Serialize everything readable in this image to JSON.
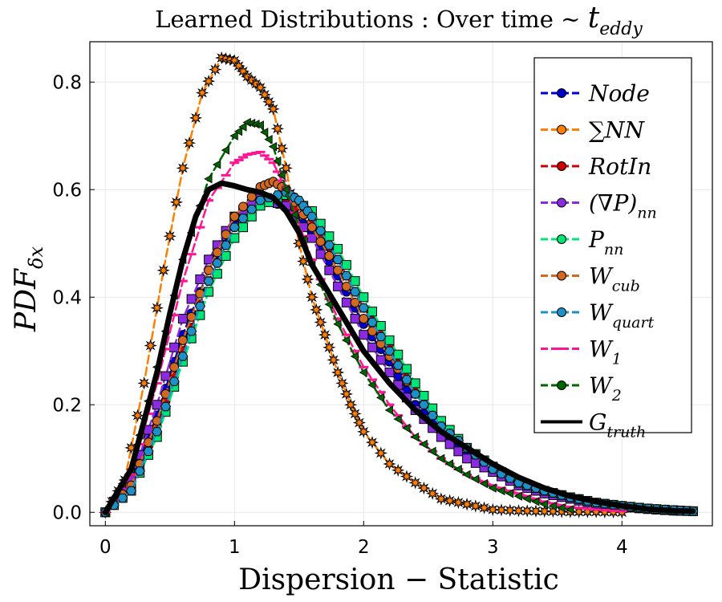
{
  "chart_data": {
    "type": "line",
    "title": "Learned Distributions :  Over time ~ t_eddy",
    "title_main": "Learned Distributions :  Over time ~ ",
    "title_var": "t",
    "title_sub": "eddy",
    "xlabel": "Dispersion − Statistic",
    "ylabel": "PDF",
    "ylabel_sub": "δx",
    "xlim": [
      -0.12,
      4.7
    ],
    "ylim": [
      -0.025,
      0.875
    ],
    "xticks": [
      "0",
      "1",
      "2",
      "3",
      "4"
    ],
    "xtick_values": [
      0,
      1,
      2,
      3,
      4
    ],
    "yticks": [
      "0.0",
      "0.2",
      "0.4",
      "0.6",
      "0.8"
    ],
    "ytick_values": [
      0,
      0.2,
      0.4,
      0.6,
      0.8
    ],
    "legend_position": "top-right",
    "series": [
      {
        "name": "Node",
        "label_main": "Node",
        "label_sub": "",
        "color": "#0000cc",
        "marker": "circle",
        "x": [
          0,
          0.2,
          0.4,
          0.6,
          0.8,
          1.0,
          1.2,
          1.4,
          1.6,
          1.8,
          2.0,
          2.2,
          2.4,
          2.6,
          2.8,
          3.0,
          3.2,
          3.4,
          3.6,
          3.8,
          4.0,
          4.2,
          4.4,
          4.55
        ],
        "y": [
          0.0,
          0.06,
          0.18,
          0.33,
          0.45,
          0.54,
          0.58,
          0.57,
          0.52,
          0.44,
          0.35,
          0.28,
          0.2,
          0.15,
          0.11,
          0.08,
          0.05,
          0.035,
          0.025,
          0.015,
          0.01,
          0.006,
          0.003,
          0.002
        ]
      },
      {
        "name": "∑NN",
        "label_main": "∑NN",
        "label_sub": "",
        "color": "#ff8000",
        "marker": "star",
        "x": [
          0,
          0.15,
          0.3,
          0.45,
          0.6,
          0.75,
          0.9,
          1.0,
          1.1,
          1.2,
          1.3,
          1.4,
          1.5,
          1.6,
          1.7,
          1.8,
          1.9,
          2.0,
          2.2,
          2.4,
          2.6,
          2.8,
          3.0,
          3.2,
          3.4,
          3.6,
          3.8,
          4.0
        ],
        "y": [
          0.0,
          0.06,
          0.24,
          0.45,
          0.64,
          0.78,
          0.845,
          0.84,
          0.81,
          0.79,
          0.75,
          0.64,
          0.5,
          0.4,
          0.33,
          0.26,
          0.2,
          0.15,
          0.09,
          0.055,
          0.025,
          0.015,
          0.005,
          0.003,
          0.002,
          0.001,
          0.001,
          0.0
        ]
      },
      {
        "name": "RotIn",
        "label_main": "RotIn",
        "label_sub": "",
        "color": "#cc0000",
        "marker": "circle",
        "x": [
          0,
          0.2,
          0.4,
          0.6,
          0.8,
          1.0,
          1.2,
          1.4,
          1.6,
          1.8,
          2.0,
          2.2,
          2.4,
          2.6,
          2.8,
          3.0,
          3.2,
          3.4,
          3.6,
          3.8,
          4.0,
          4.2,
          4.4,
          4.55
        ],
        "y": [
          0.0,
          0.05,
          0.16,
          0.3,
          0.43,
          0.53,
          0.58,
          0.58,
          0.54,
          0.47,
          0.38,
          0.31,
          0.23,
          0.16,
          0.12,
          0.085,
          0.055,
          0.04,
          0.028,
          0.018,
          0.012,
          0.007,
          0.004,
          0.002
        ]
      },
      {
        "name": "(∇P)_nn",
        "label_main": "(∇P)",
        "label_sub": "nn",
        "color": "#8a2be2",
        "marker": "square",
        "x": [
          0,
          0.2,
          0.4,
          0.6,
          0.8,
          1.0,
          1.2,
          1.4,
          1.6,
          1.8,
          2.0,
          2.2,
          2.4,
          2.6,
          2.8,
          3.0,
          3.2,
          3.4,
          3.6,
          3.8,
          4.0,
          4.2,
          4.4,
          4.55
        ],
        "y": [
          0.0,
          0.06,
          0.2,
          0.36,
          0.47,
          0.55,
          0.585,
          0.57,
          0.51,
          0.42,
          0.33,
          0.26,
          0.19,
          0.14,
          0.1,
          0.075,
          0.05,
          0.035,
          0.025,
          0.015,
          0.01,
          0.006,
          0.003,
          0.002
        ]
      },
      {
        "name": "P_nn",
        "label_main": "P",
        "label_sub": "nn",
        "color": "#00e676",
        "marker": "square",
        "x": [
          0,
          0.2,
          0.4,
          0.6,
          0.8,
          1.0,
          1.2,
          1.4,
          1.6,
          1.8,
          2.0,
          2.2,
          2.4,
          2.6,
          2.8,
          3.0,
          3.2,
          3.4,
          3.6,
          3.8,
          4.0,
          4.2,
          4.4,
          4.55
        ],
        "y": [
          0.0,
          0.04,
          0.14,
          0.28,
          0.41,
          0.51,
          0.57,
          0.59,
          0.56,
          0.49,
          0.4,
          0.32,
          0.24,
          0.17,
          0.12,
          0.085,
          0.055,
          0.04,
          0.028,
          0.018,
          0.012,
          0.007,
          0.004,
          0.002
        ]
      },
      {
        "name": "W_cub",
        "label_main": "W",
        "label_sub": "cub",
        "color": "#d2691e",
        "marker": "circle",
        "x": [
          0,
          0.2,
          0.4,
          0.6,
          0.8,
          1.0,
          1.2,
          1.3,
          1.4,
          1.6,
          1.8,
          2.0,
          2.2,
          2.4,
          2.6,
          2.8,
          3.0,
          3.2,
          3.4,
          3.6,
          3.8,
          4.0,
          4.2,
          4.4,
          4.55
        ],
        "y": [
          0.0,
          0.05,
          0.17,
          0.32,
          0.45,
          0.55,
          0.605,
          0.615,
          0.6,
          0.53,
          0.45,
          0.36,
          0.29,
          0.22,
          0.16,
          0.12,
          0.085,
          0.055,
          0.04,
          0.028,
          0.018,
          0.012,
          0.007,
          0.004,
          0.002
        ]
      },
      {
        "name": "W_quart",
        "label_main": "W",
        "label_sub": "quart",
        "color": "#1e90c8",
        "marker": "hexagon",
        "x": [
          0,
          0.2,
          0.4,
          0.6,
          0.8,
          1.0,
          1.2,
          1.4,
          1.5,
          1.6,
          1.8,
          2.0,
          2.2,
          2.4,
          2.6,
          2.8,
          3.0,
          3.2,
          3.4,
          3.6,
          3.8,
          4.0,
          4.2,
          4.4,
          4.55
        ],
        "y": [
          0.0,
          0.04,
          0.15,
          0.29,
          0.43,
          0.53,
          0.58,
          0.595,
          0.58,
          0.55,
          0.47,
          0.38,
          0.3,
          0.22,
          0.16,
          0.12,
          0.08,
          0.055,
          0.04,
          0.028,
          0.018,
          0.012,
          0.007,
          0.004,
          0.002
        ]
      },
      {
        "name": "W_1",
        "label_main": "W",
        "label_sub": "1",
        "color": "#ff1493",
        "marker": "dash",
        "x": [
          0,
          0.2,
          0.4,
          0.6,
          0.8,
          1.0,
          1.1,
          1.2,
          1.3,
          1.4,
          1.6,
          1.8,
          2.0,
          2.2,
          2.4,
          2.6,
          2.8,
          3.0,
          3.2,
          3.4,
          3.6,
          3.8,
          4.0
        ],
        "y": [
          0.0,
          0.07,
          0.24,
          0.43,
          0.58,
          0.65,
          0.665,
          0.67,
          0.65,
          0.6,
          0.47,
          0.36,
          0.27,
          0.2,
          0.14,
          0.1,
          0.07,
          0.05,
          0.035,
          0.02,
          0.01,
          0.005,
          0.002
        ]
      },
      {
        "name": "W_2",
        "label_main": "W",
        "label_sub": "2",
        "color": "#006400",
        "marker": "triangle",
        "x": [
          0,
          0.2,
          0.4,
          0.6,
          0.8,
          1.0,
          1.1,
          1.2,
          1.3,
          1.4,
          1.6,
          1.8,
          2.0,
          2.2,
          2.4,
          2.6,
          2.8,
          3.0,
          3.2,
          3.4,
          3.6
        ],
        "y": [
          0.0,
          0.08,
          0.27,
          0.47,
          0.62,
          0.7,
          0.725,
          0.72,
          0.68,
          0.6,
          0.46,
          0.35,
          0.26,
          0.19,
          0.14,
          0.1,
          0.07,
          0.045,
          0.03,
          0.015,
          0.005
        ]
      },
      {
        "name": "G_truth",
        "label_main": "G",
        "label_sub": "truth",
        "color": "#000000",
        "marker": "none",
        "x": [
          0,
          0.2,
          0.4,
          0.5,
          0.6,
          0.7,
          0.8,
          0.9,
          1.0,
          1.1,
          1.2,
          1.3,
          1.4,
          1.5,
          1.6,
          1.8,
          2.0,
          2.2,
          2.4,
          2.6,
          2.8,
          3.0,
          3.2,
          3.4,
          3.6,
          3.8,
          4.0,
          4.2,
          4.4,
          4.55
        ],
        "y": [
          0.0,
          0.08,
          0.26,
          0.37,
          0.47,
          0.55,
          0.6,
          0.612,
          0.607,
          0.6,
          0.595,
          0.585,
          0.56,
          0.52,
          0.46,
          0.38,
          0.3,
          0.24,
          0.19,
          0.15,
          0.12,
          0.09,
          0.065,
          0.045,
          0.03,
          0.02,
          0.012,
          0.006,
          0.003,
          0.002
        ]
      }
    ]
  }
}
